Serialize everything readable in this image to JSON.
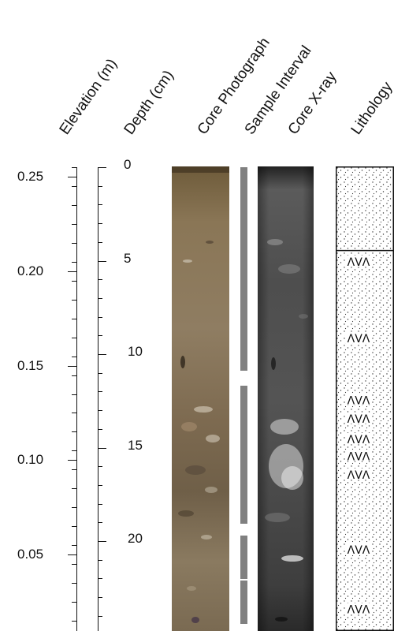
{
  "headers": {
    "elevation": "Elevation (m)",
    "depth": "Depth (cm)",
    "photo": "Core Photograph",
    "sample": "Sample Interval",
    "xray": "Core X-ray",
    "lithology": "Lithology"
  },
  "elevation_axis": {
    "ticks": [
      0.25,
      0.2,
      0.15,
      0.1,
      0.05
    ],
    "labels": [
      "0.25",
      "0.20",
      "0.15",
      "0.10",
      "0.05"
    ]
  },
  "depth_axis": {
    "ticks": [
      0,
      5,
      10,
      15,
      20
    ],
    "labels": [
      "0",
      "5",
      "10",
      "15",
      "20"
    ]
  },
  "sample_intervals_cm": [
    [
      0,
      4
    ],
    [
      4,
      6.6
    ],
    [
      6.6,
      8.7
    ],
    [
      8.7,
      10.9
    ],
    [
      11.7,
      19.1
    ],
    [
      19.7,
      22.0
    ],
    [
      22.1,
      24.4
    ]
  ],
  "lithology": {
    "boundary_depth_cm": 4.5,
    "shell_marker_symbol": "ΛVΛ",
    "shell_marker_depths_cm": [
      5.1,
      9.2,
      12.5,
      13.5,
      14.6,
      15.5,
      16.5,
      20.5,
      23.7
    ]
  },
  "colors": {
    "axis": "#111111",
    "sample_bar": "#808080",
    "photo_base": "#8a7656",
    "xray_base": "#4a4a4a"
  }
}
